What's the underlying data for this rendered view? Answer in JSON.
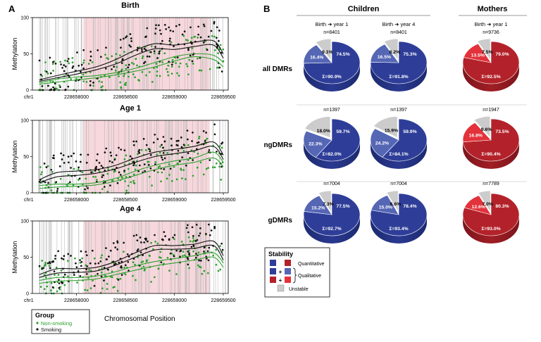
{
  "panel_a": {
    "letter": "A",
    "y_label": "Methylation",
    "x_label": "Chromosomal Position",
    "chrom_label": "chr1",
    "y_ticks": [
      "0",
      "50",
      "100"
    ],
    "x_ticks": [
      "228658000",
      "228658500",
      "228659000",
      "228659500"
    ],
    "legend": {
      "title": "Group",
      "items": [
        {
          "label": "Non-smoking",
          "color": "#2ca02c"
        },
        {
          "label": "Smoking",
          "color": "#111111"
        }
      ]
    },
    "plots": [
      {
        "title": "Birth"
      },
      {
        "title": "Age 1"
      },
      {
        "title": "Age 4"
      }
    ]
  },
  "panel_b": {
    "letter": "B",
    "groups": [
      {
        "title": "Children",
        "columns": [
          {
            "label": "Birth ➜ year 1"
          },
          {
            "label": "Birth ➜ year 4"
          }
        ]
      },
      {
        "title": "Mothers",
        "columns": [
          {
            "label": "Birth ➜ year 1"
          }
        ]
      }
    ],
    "row_labels": [
      "all DMRs",
      "ngDMRs",
      "gDMRs"
    ],
    "legend": {
      "title": "Stability",
      "quantitative": "Quantitative",
      "qualitative": "Qualitative",
      "unstable": "Unstable",
      "plus": "+"
    }
  },
  "chart_data": [
    {
      "type": "scatter",
      "title": "Birth",
      "xlabel": "Chromosomal Position",
      "ylabel": "Methylation",
      "xlim": [
        228657550,
        228659550
      ],
      "ylim": [
        0,
        100
      ],
      "x_ticks": [
        228658000,
        228658500,
        228659000,
        228659500
      ],
      "y_ticks": [
        0,
        50,
        100
      ],
      "highlight_region": [
        228658070,
        228659360
      ],
      "series": [
        {
          "name": "Non-smoking",
          "color": "#2ca02c",
          "trend": [
            [
              228657620,
              10
            ],
            [
              228657800,
              15
            ],
            [
              228658000,
              18
            ],
            [
              228658200,
              20
            ],
            [
              228658400,
              24
            ],
            [
              228658600,
              30
            ],
            [
              228658800,
              38
            ],
            [
              228659000,
              46
            ],
            [
              228659200,
              50
            ],
            [
              228659400,
              48
            ],
            [
              228659500,
              38
            ]
          ],
          "trend_b": [
            [
              228657620,
              8
            ],
            [
              228657800,
              11
            ],
            [
              228658000,
              14
            ],
            [
              228658200,
              17
            ],
            [
              228658400,
              21
            ],
            [
              228658600,
              26
            ],
            [
              228658800,
              32
            ],
            [
              228659000,
              40
            ],
            [
              228659200,
              46
            ],
            [
              228659400,
              42
            ],
            [
              228659500,
              32
            ]
          ]
        },
        {
          "name": "Smoking",
          "color": "#111111",
          "trend": [
            [
              228657620,
              14
            ],
            [
              228657800,
              20
            ],
            [
              228658000,
              26
            ],
            [
              228658200,
              32
            ],
            [
              228658400,
              42
            ],
            [
              228658600,
              55
            ],
            [
              228658800,
              64
            ],
            [
              228659000,
              62
            ],
            [
              228659200,
              66
            ],
            [
              228659400,
              68
            ],
            [
              228659500,
              50
            ]
          ],
          "trend_b": [
            [
              228657620,
              12
            ],
            [
              228657800,
              17
            ],
            [
              228658000,
              22
            ],
            [
              228658200,
              28
            ],
            [
              228658400,
              36
            ],
            [
              228658600,
              48
            ],
            [
              228658800,
              57
            ],
            [
              228659000,
              56
            ],
            [
              228659200,
              60
            ],
            [
              228659400,
              62
            ],
            [
              228659500,
              44
            ]
          ]
        }
      ]
    },
    {
      "type": "scatter",
      "title": "Age 1",
      "xlabel": "Chromosomal Position",
      "ylabel": "Methylation",
      "xlim": [
        228657550,
        228659550
      ],
      "ylim": [
        0,
        100
      ],
      "x_ticks": [
        228658000,
        228658500,
        228659000,
        228659500
      ],
      "y_ticks": [
        0,
        50,
        100
      ],
      "highlight_region": [
        228658070,
        228659360
      ],
      "series": [
        {
          "name": "Non-smoking",
          "color": "#2ca02c",
          "trend": [
            [
              228657620,
              10
            ],
            [
              228657800,
              12
            ],
            [
              228658000,
              12
            ],
            [
              228658200,
              14
            ],
            [
              228658400,
              20
            ],
            [
              228658600,
              30
            ],
            [
              228658800,
              38
            ],
            [
              228659000,
              44
            ],
            [
              228659200,
              48
            ],
            [
              228659400,
              56
            ],
            [
              228659500,
              42
            ]
          ],
          "trend_b": [
            [
              228657620,
              6
            ],
            [
              228657800,
              8
            ],
            [
              228658000,
              9
            ],
            [
              228658200,
              11
            ],
            [
              228658400,
              16
            ],
            [
              228658600,
              24
            ],
            [
              228658800,
              32
            ],
            [
              228659000,
              38
            ],
            [
              228659200,
              42
            ],
            [
              228659400,
              48
            ],
            [
              228659500,
              36
            ]
          ]
        },
        {
          "name": "Smoking",
          "color": "#111111",
          "trend": [
            [
              228657620,
              18
            ],
            [
              228657800,
              28
            ],
            [
              228658000,
              30
            ],
            [
              228658200,
              32
            ],
            [
              228658400,
              38
            ],
            [
              228658600,
              48
            ],
            [
              228658800,
              56
            ],
            [
              228659000,
              60
            ],
            [
              228659200,
              64
            ],
            [
              228659400,
              70
            ],
            [
              228659500,
              52
            ]
          ],
          "trend_b": [
            [
              228657620,
              14
            ],
            [
              228657800,
              22
            ],
            [
              228658000,
              24
            ],
            [
              228658200,
              27
            ],
            [
              228658400,
              33
            ],
            [
              228658600,
              42
            ],
            [
              228658800,
              50
            ],
            [
              228659000,
              54
            ],
            [
              228659200,
              58
            ],
            [
              228659400,
              64
            ],
            [
              228659500,
              46
            ]
          ]
        }
      ]
    },
    {
      "type": "scatter",
      "title": "Age 4",
      "xlabel": "Chromosomal Position",
      "ylabel": "Methylation",
      "xlim": [
        228657550,
        228659550
      ],
      "ylim": [
        0,
        100
      ],
      "x_ticks": [
        228658000,
        228658500,
        228659000,
        228659500
      ],
      "y_ticks": [
        0,
        50,
        100
      ],
      "highlight_region": [
        228658070,
        228659360
      ],
      "series": [
        {
          "name": "Non-smoking",
          "color": "#2ca02c",
          "trend": [
            [
              228657620,
              18
            ],
            [
              228657800,
              22
            ],
            [
              228658000,
              22
            ],
            [
              228658200,
              24
            ],
            [
              228658400,
              30
            ],
            [
              228658600,
              38
            ],
            [
              228658800,
              44
            ],
            [
              228659000,
              48
            ],
            [
              228659200,
              52
            ],
            [
              228659400,
              56
            ],
            [
              228659500,
              42
            ]
          ],
          "trend_b": [
            [
              228657620,
              14
            ],
            [
              228657800,
              17
            ],
            [
              228658000,
              18
            ],
            [
              228658200,
              20
            ],
            [
              228658400,
              26
            ],
            [
              228658600,
              32
            ],
            [
              228658800,
              38
            ],
            [
              228659000,
              42
            ],
            [
              228659200,
              46
            ],
            [
              228659400,
              50
            ],
            [
              228659500,
              36
            ]
          ]
        },
        {
          "name": "Smoking",
          "color": "#111111",
          "trend": [
            [
              228657620,
              26
            ],
            [
              228657800,
              34
            ],
            [
              228658000,
              34
            ],
            [
              228658200,
              36
            ],
            [
              228658400,
              44
            ],
            [
              228658600,
              56
            ],
            [
              228658800,
              66
            ],
            [
              228659000,
              66
            ],
            [
              228659200,
              68
            ],
            [
              228659400,
              72
            ],
            [
              228659500,
              52
            ]
          ],
          "trend_b": [
            [
              228657620,
              22
            ],
            [
              228657800,
              28
            ],
            [
              228658000,
              29
            ],
            [
              228658200,
              31
            ],
            [
              228658400,
              39
            ],
            [
              228658600,
              50
            ],
            [
              228658800,
              60
            ],
            [
              228659000,
              61
            ],
            [
              228659200,
              62
            ],
            [
              228659400,
              66
            ],
            [
              228659500,
              46
            ]
          ]
        }
      ]
    },
    {
      "type": "pie",
      "group": "Children",
      "column": "Birth ➜ year 1",
      "row": "all DMRs",
      "n_label": "n=8401",
      "sum_label": "Σ=90.9%",
      "labels": [
        "Quantitative",
        "Qualitative",
        "Unstable"
      ],
      "values": [
        74.5,
        16.4,
        9.1
      ],
      "value_labels": [
        "74.5%",
        "16.4%",
        "9.1%"
      ],
      "colors": [
        "#2e3e98",
        "#5566b5",
        "#cccccc"
      ]
    },
    {
      "type": "pie",
      "group": "Children",
      "column": "Birth ➜ year 4",
      "row": "all DMRs",
      "n_label": "n=8401",
      "sum_label": "Σ=91.8%",
      "labels": [
        "Quantitative",
        "Qualitative",
        "Unstable"
      ],
      "values": [
        75.3,
        16.5,
        8.2
      ],
      "value_labels": [
        "75.3%",
        "16.5%",
        "8.2%"
      ],
      "colors": [
        "#2e3e98",
        "#5566b5",
        "#cccccc"
      ]
    },
    {
      "type": "pie",
      "group": "Mothers",
      "column": "Birth ➜ year 1",
      "row": "all DMRs",
      "n_label": "n=9736",
      "sum_label": "Σ=92.5%",
      "labels": [
        "Quantitative",
        "Qualitative",
        "Unstable"
      ],
      "values": [
        79.0,
        13.5,
        7.5
      ],
      "value_labels": [
        "79.0%",
        "13.5%",
        "7.5%"
      ],
      "colors": [
        "#b3222a",
        "#e3323b",
        "#cccccc"
      ]
    },
    {
      "type": "pie",
      "group": "Children",
      "column": "Birth ➜ year 1",
      "row": "ngDMRs",
      "n_label": "n=1397",
      "sum_label": "Σ=82.0%",
      "labels": [
        "Quantitative",
        "Qualitative",
        "Unstable"
      ],
      "values": [
        59.7,
        22.3,
        18.0
      ],
      "value_labels": [
        "59.7%",
        "22.3%",
        "18.0%"
      ],
      "colors": [
        "#2e3e98",
        "#5566b5",
        "#cccccc"
      ]
    },
    {
      "type": "pie",
      "group": "Children",
      "column": "Birth ➜ year 4",
      "row": "ngDMRs",
      "n_label": "n=1397",
      "sum_label": "Σ=84.1%",
      "labels": [
        "Quantitative",
        "Qualitative",
        "Unstable"
      ],
      "values": [
        59.9,
        24.2,
        15.9
      ],
      "value_labels": [
        "59.9%",
        "24.2%",
        "15.9%"
      ],
      "colors": [
        "#2e3e98",
        "#5566b5",
        "#cccccc"
      ]
    },
    {
      "type": "pie",
      "group": "Mothers",
      "column": "Birth ➜ year 1",
      "row": "ngDMRs",
      "n_label": "n=1947",
      "sum_label": "Σ=90.4%",
      "labels": [
        "Quantitative",
        "Qualitative",
        "Unstable"
      ],
      "values": [
        73.5,
        16.8,
        9.6
      ],
      "value_labels": [
        "73.5%",
        "16.8%",
        "9.6%"
      ],
      "colors": [
        "#b3222a",
        "#e3323b",
        "#cccccc"
      ]
    },
    {
      "type": "pie",
      "group": "Children",
      "column": "Birth ➜ year 1",
      "row": "gDMRs",
      "n_label": "n=7004",
      "sum_label": "Σ=92.7%",
      "labels": [
        "Quantitative",
        "Qualitative",
        "Unstable"
      ],
      "values": [
        77.5,
        15.2,
        7.3
      ],
      "value_labels": [
        "77.5%",
        "15.2%",
        "7.3%"
      ],
      "colors": [
        "#2e3e98",
        "#5566b5",
        "#cccccc"
      ]
    },
    {
      "type": "pie",
      "group": "Children",
      "column": "Birth ➜ year 4",
      "row": "gDMRs",
      "n_label": "n=7004",
      "sum_label": "Σ=93.4%",
      "labels": [
        "Quantitative",
        "Qualitative",
        "Unstable"
      ],
      "values": [
        78.4,
        15.0,
        6.6
      ],
      "value_labels": [
        "78.4%",
        "15.0%",
        "6.6%"
      ],
      "colors": [
        "#2e3e98",
        "#5566b5",
        "#cccccc"
      ]
    },
    {
      "type": "pie",
      "group": "Mothers",
      "column": "Birth ➜ year 1",
      "row": "gDMRs",
      "n_label": "n=7789",
      "sum_label": "Σ=93.0%",
      "labels": [
        "Quantitative",
        "Qualitative",
        "Unstable"
      ],
      "values": [
        80.3,
        12.6,
        7.0
      ],
      "value_labels": [
        "80.3%",
        "12.6%",
        "7.0%"
      ],
      "colors": [
        "#b3222a",
        "#e3323b",
        "#cccccc"
      ]
    }
  ]
}
